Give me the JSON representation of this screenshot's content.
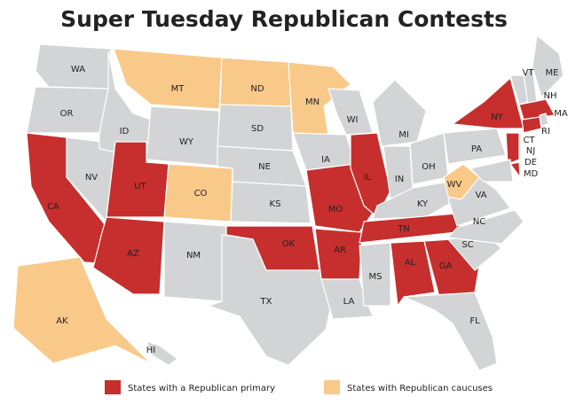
{
  "title": "Super Tuesday Republican Contests",
  "legend": [
    {
      "label": "States with a Republican primary",
      "color": "#c62f2d"
    },
    {
      "label": "States with Republican caucuses",
      "color": "#f9c98a"
    }
  ],
  "other_color": "#d3d4d6",
  "states": [
    {
      "label": "WA",
      "group": null
    },
    {
      "label": "OR",
      "group": null
    },
    {
      "label": "CA",
      "group": 0
    },
    {
      "label": "NV",
      "group": null
    },
    {
      "label": "ID",
      "group": null
    },
    {
      "label": "MT",
      "group": 1
    },
    {
      "label": "WY",
      "group": null
    },
    {
      "label": "UT",
      "group": 0
    },
    {
      "label": "CO",
      "group": 1
    },
    {
      "label": "AZ",
      "group": 0
    },
    {
      "label": "NM",
      "group": null
    },
    {
      "label": "ND",
      "group": 1
    },
    {
      "label": "SD",
      "group": null
    },
    {
      "label": "NE",
      "group": null
    },
    {
      "label": "KS",
      "group": null
    },
    {
      "label": "OK",
      "group": 0
    },
    {
      "label": "TX",
      "group": null
    },
    {
      "label": "MN",
      "group": 1
    },
    {
      "label": "IA",
      "group": null
    },
    {
      "label": "MO",
      "group": 0
    },
    {
      "label": "AR",
      "group": 0
    },
    {
      "label": "LA",
      "group": null
    },
    {
      "label": "WI",
      "group": null
    },
    {
      "label": "IL",
      "group": 0
    },
    {
      "label": "MI",
      "group": null
    },
    {
      "label": "IN",
      "group": null
    },
    {
      "label": "OH",
      "group": null
    },
    {
      "label": "KY",
      "group": null
    },
    {
      "label": "TN",
      "group": 0
    },
    {
      "label": "MS",
      "group": null
    },
    {
      "label": "AL",
      "group": 0
    },
    {
      "label": "GA",
      "group": 0
    },
    {
      "label": "FL",
      "group": null
    },
    {
      "label": "SC",
      "group": null
    },
    {
      "label": "NC",
      "group": null
    },
    {
      "label": "VA",
      "group": null
    },
    {
      "label": "WV",
      "group": 1
    },
    {
      "label": "PA",
      "group": null
    },
    {
      "label": "NY",
      "group": 0
    },
    {
      "label": "VT",
      "group": null
    },
    {
      "label": "NH",
      "group": null
    },
    {
      "label": "ME",
      "group": null
    },
    {
      "label": "MA",
      "group": 0
    },
    {
      "label": "RI",
      "group": null
    },
    {
      "label": "CT",
      "group": 0
    },
    {
      "label": "NJ",
      "group": 0
    },
    {
      "label": "DE",
      "group": 0
    },
    {
      "label": "MD",
      "group": null
    },
    {
      "label": "AK",
      "group": 1
    },
    {
      "label": "HI",
      "group": null
    }
  ]
}
